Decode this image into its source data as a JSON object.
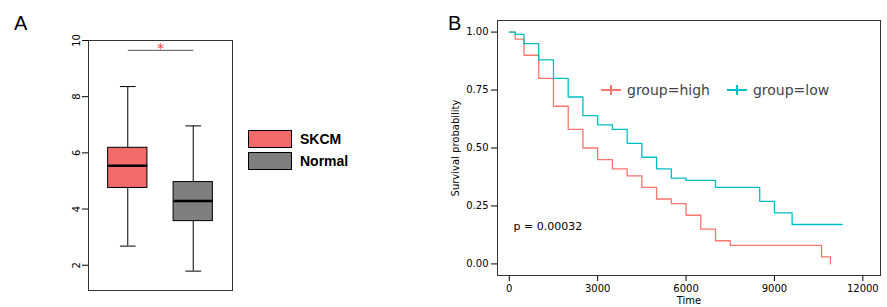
{
  "chart_data": [
    {
      "type": "box",
      "panel_label": "A",
      "categories": [
        "SKCM",
        "Normal"
      ],
      "colors": [
        "#f16b6b",
        "#7f7f7f"
      ],
      "boxes": [
        {
          "low": 2.68,
          "q1": 4.75,
          "median": 5.54,
          "q3": 6.18,
          "high": 8.36
        },
        {
          "low": 1.79,
          "q1": 3.57,
          "median": 4.29,
          "q3": 4.96,
          "high": 6.96
        }
      ],
      "ylim": [
        1.1,
        10
      ],
      "yticks": [
        2,
        4,
        6,
        8,
        10
      ],
      "tick_labels": "y",
      "legend": "right",
      "significance": {
        "label": "*",
        "y": 9.65
      }
    },
    {
      "type": "line",
      "panel_label": "B",
      "xlabel": "Time",
      "ylabel": "Survival probability",
      "line_style": "step",
      "series": [
        {
          "name": "group=high",
          "color": "#f8766d",
          "x": [
            0,
            200,
            500,
            1000,
            1500,
            2000,
            2500,
            3000,
            3500,
            4000,
            4500,
            5000,
            5500,
            6000,
            6500,
            7000,
            7500,
            10600,
            10900
          ],
          "values": [
            1,
            0.97,
            0.9,
            0.8,
            0.68,
            0.58,
            0.5,
            0.45,
            0.41,
            0.38,
            0.33,
            0.28,
            0.26,
            0.21,
            0.15,
            0.1,
            0.08,
            0.03,
            0
          ]
        },
        {
          "name": "group=low",
          "color": "#00bfc4",
          "x": [
            0,
            200,
            500,
            1000,
            1500,
            2000,
            2500,
            3000,
            3500,
            4000,
            4500,
            5000,
            5500,
            6000,
            7000,
            7800,
            8500,
            9000,
            9600,
            11300
          ],
          "values": [
            1,
            0.99,
            0.95,
            0.88,
            0.8,
            0.72,
            0.64,
            0.6,
            0.58,
            0.52,
            0.46,
            0.41,
            0.37,
            0.36,
            0.33,
            0.33,
            0.27,
            0.22,
            0.17,
            0.17
          ]
        }
      ],
      "xlim": [
        -400,
        12600
      ],
      "xticks": [
        0,
        3000,
        6000,
        9000,
        12000
      ],
      "ylim": [
        -0.05,
        1.05
      ],
      "yticks": [
        {
          "value": 0,
          "label": "0.00"
        },
        {
          "value": 0.25,
          "label": "0.25"
        },
        {
          "value": 0.5,
          "label": "0.50"
        },
        {
          "value": 0.75,
          "label": "0.75"
        },
        {
          "value": 1,
          "label": "1.00"
        }
      ],
      "annotation": "p = 0.00032",
      "legend": "top"
    }
  ]
}
